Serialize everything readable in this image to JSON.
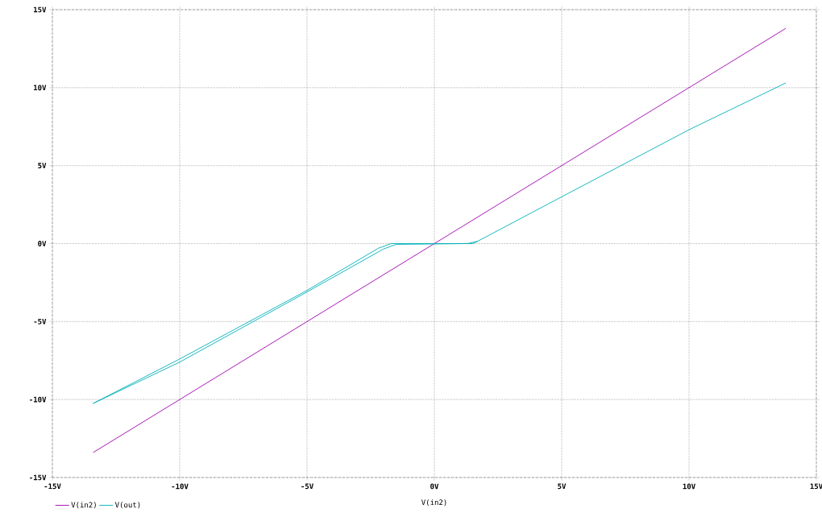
{
  "chart_data": {
    "type": "line",
    "xlabel": "V(in2)",
    "xlim": [
      -15,
      15
    ],
    "ylim": [
      -15,
      15
    ],
    "xticks": [
      {
        "value": -15,
        "label": "-15V"
      },
      {
        "value": -10,
        "label": "-10V"
      },
      {
        "value": -5,
        "label": "-5V"
      },
      {
        "value": 0,
        "label": "0V"
      },
      {
        "value": 5,
        "label": "5V"
      },
      {
        "value": 10,
        "label": "10V"
      },
      {
        "value": 15,
        "label": "15V"
      }
    ],
    "yticks": [
      {
        "value": -15,
        "label": "-15V"
      },
      {
        "value": -10,
        "label": "-10V"
      },
      {
        "value": -5,
        "label": "-5V"
      },
      {
        "value": 0,
        "label": "0V"
      },
      {
        "value": 5,
        "label": "5V"
      },
      {
        "value": 10,
        "label": "10V"
      },
      {
        "value": 15,
        "label": "15V"
      }
    ],
    "grid": true,
    "legend": "bottom left",
    "series": [
      {
        "name": "V(in2)",
        "color": "#a000b0",
        "x": [
          -13.4,
          13.8
        ],
        "values": [
          -13.4,
          13.8
        ]
      },
      {
        "name": "V(out)",
        "color": "#00b0b8",
        "x": [
          -13.4,
          -10,
          -5,
          -2,
          -1.5,
          1.3,
          1.7,
          5,
          10,
          13.8
        ],
        "values": [
          -10.25,
          -7.6,
          -3.1,
          -0.35,
          -0.05,
          0,
          0.15,
          3.0,
          7.3,
          10.3
        ]
      },
      {
        "color": "#00b0b8",
        "x": [
          -13.4,
          -10,
          -5,
          -2.2,
          -1.7,
          1.5,
          1.7
        ],
        "values": [
          -10.25,
          -7.4,
          -3.0,
          -0.3,
          0,
          0,
          0.15
        ]
      }
    ]
  }
}
